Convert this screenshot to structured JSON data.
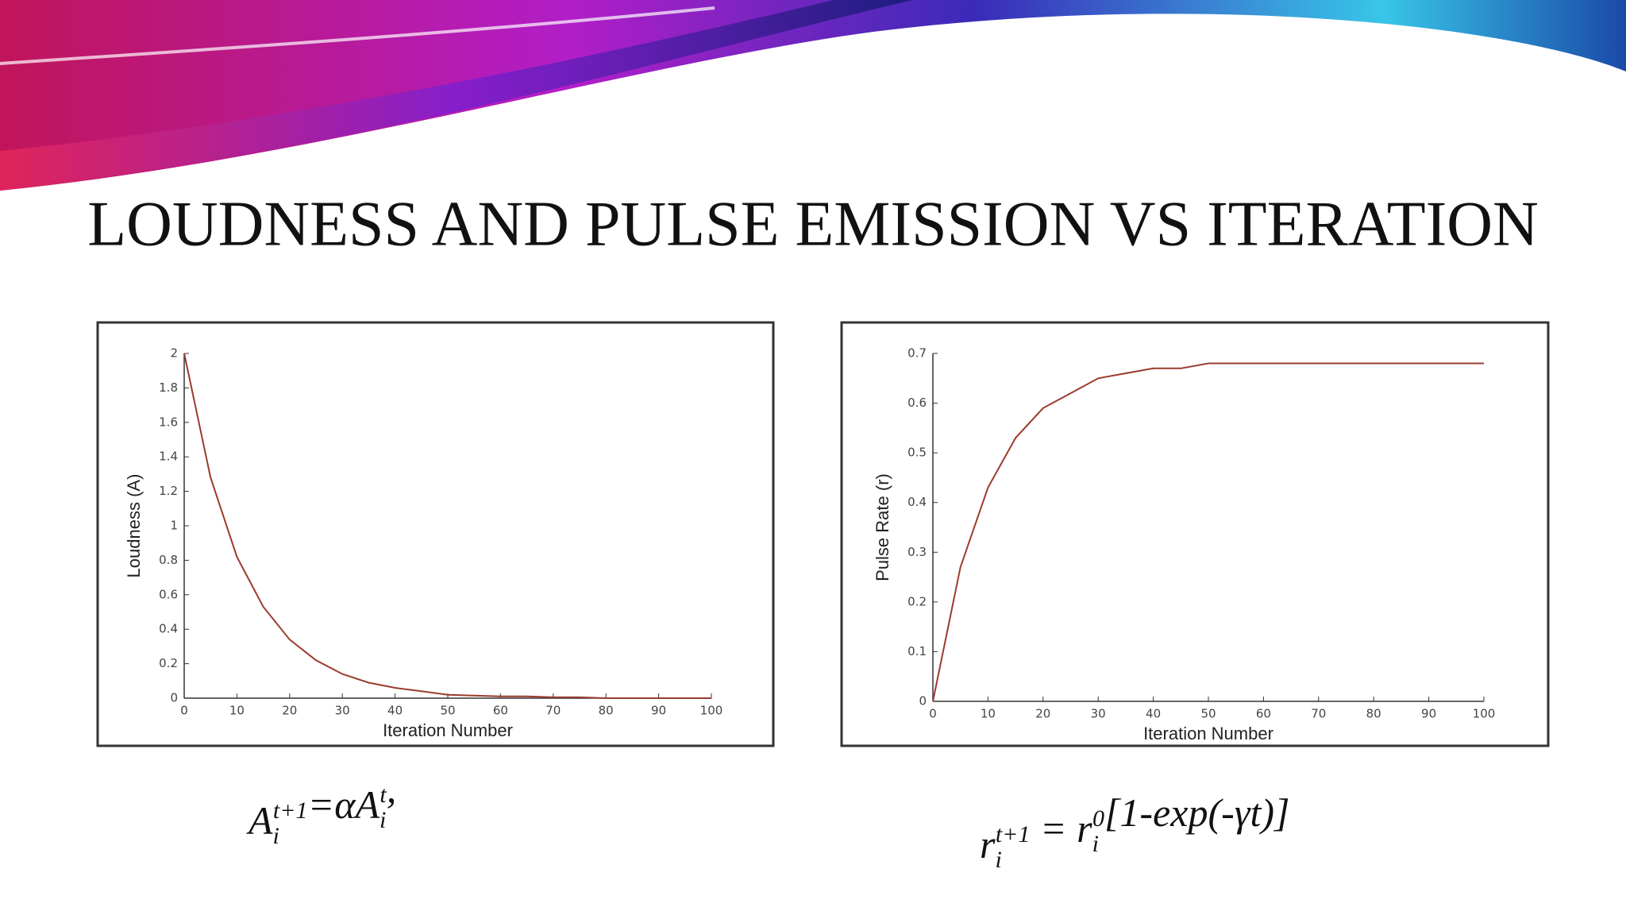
{
  "title": "LOUDNESS AND PULSE EMISSION VS ITERATION",
  "chart_data": [
    {
      "type": "line",
      "xlabel": "Iteration Number",
      "ylabel": "Loudness (A)",
      "color": "#9b3b2e",
      "x": [
        0,
        5,
        10,
        15,
        20,
        25,
        30,
        35,
        40,
        45,
        50,
        55,
        60,
        65,
        70,
        75,
        80,
        85,
        90,
        95,
        100
      ],
      "values": [
        2,
        1.28,
        0.82,
        0.53,
        0.34,
        0.22,
        0.14,
        0.09,
        0.06,
        0.04,
        0.02,
        0.015,
        0.01,
        0.01,
        0.005,
        0.005,
        0,
        0,
        0,
        0,
        0
      ],
      "xlim": [
        0,
        100
      ],
      "ylim": [
        0,
        2
      ],
      "xticks": [
        0,
        10,
        20,
        30,
        40,
        50,
        60,
        70,
        80,
        90,
        100
      ],
      "yticks": [
        0,
        0.2,
        0.4,
        0.6,
        0.8,
        1,
        1.2,
        1.4,
        1.6,
        1.8,
        2
      ]
    },
    {
      "type": "line",
      "xlabel": "Iteration Number",
      "ylabel": "Pulse Rate (r)",
      "color": "#9b3b2e",
      "x": [
        0,
        5,
        10,
        15,
        20,
        25,
        30,
        35,
        40,
        45,
        50,
        55,
        60,
        65,
        70,
        75,
        80,
        85,
        90,
        95,
        100
      ],
      "values": [
        0,
        0.27,
        0.43,
        0.53,
        0.59,
        0.62,
        0.65,
        0.66,
        0.67,
        0.67,
        0.68,
        0.68,
        0.68,
        0.68,
        0.68,
        0.68,
        0.68,
        0.68,
        0.68,
        0.68,
        0.68
      ],
      "xlim": [
        0,
        100
      ],
      "ylim": [
        0,
        0.7
      ],
      "xticks": [
        0,
        10,
        20,
        30,
        40,
        50,
        60,
        70,
        80,
        90,
        100
      ],
      "yticks": [
        0,
        0.1,
        0.2,
        0.3,
        0.4,
        0.5,
        0.6,
        0.7
      ]
    }
  ],
  "formulas": [
    [
      {
        "base": "A",
        "sub": "i",
        "sup": "t+1"
      },
      {
        "base": "=αA",
        "sub": "i",
        "sup": "t"
      },
      {
        "base": ","
      }
    ],
    [
      {
        "base": "r",
        "sub": "i",
        "sup": "t+1"
      },
      {
        "base": " = r",
        "sub": "i",
        "sup": "0"
      },
      {
        "base": "[1-exp(-γt)]"
      }
    ]
  ]
}
